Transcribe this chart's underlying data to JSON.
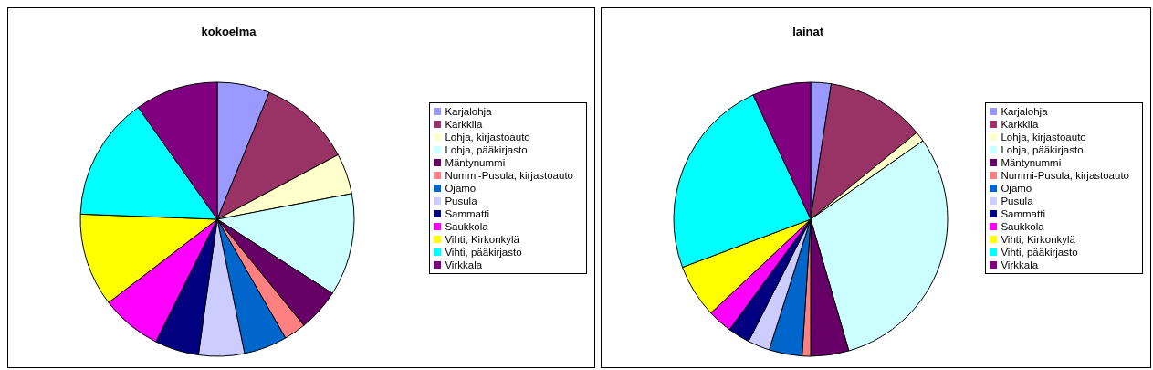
{
  "chart_data": [
    {
      "type": "pie",
      "title": "kokoelma",
      "categories": [
        "Karjalohja",
        "Karkkila",
        "Lohja, kirjastoauto",
        "Lohja, pääkirjasto",
        "Mäntynummi",
        "Nummi-Pusula, kirjastoauto",
        "Ojamo",
        "Pusula",
        "Sammatti",
        "Saukkola",
        "Vihti, Kirkonkylä",
        "Vihti, pääkirjasto",
        "Virkkala"
      ],
      "values": [
        6.2,
        11.0,
        4.8,
        12.1,
        5.0,
        2.6,
        5.1,
        5.4,
        5.2,
        7.2,
        11.0,
        14.6,
        9.8
      ],
      "colors": [
        "#9999ff",
        "#993366",
        "#ffffcc",
        "#ccffff",
        "#660066",
        "#ff8080",
        "#0066cc",
        "#ccccff",
        "#000080",
        "#ff00ff",
        "#ffff00",
        "#00ffff",
        "#800080"
      ],
      "legend": "right"
    },
    {
      "type": "pie",
      "title": "lainat",
      "categories": [
        "Karjalohja",
        "Karkkila",
        "Lohja, kirjastoauto",
        "Lohja, pääkirjasto",
        "Mäntynummi",
        "Nummi-Pusula, kirjastoauto",
        "Ojamo",
        "Pusula",
        "Sammatti",
        "Saukkola",
        "Vihti, Kirkonkylä",
        "Vihti, pääkirjasto",
        "Virkkala"
      ],
      "values": [
        2.4,
        11.7,
        1.2,
        30.2,
        4.5,
        1.0,
        3.9,
        2.6,
        2.6,
        2.9,
        6.3,
        23.8,
        6.9
      ],
      "colors": [
        "#9999ff",
        "#993366",
        "#ffffcc",
        "#ccffff",
        "#660066",
        "#ff8080",
        "#0066cc",
        "#ccccff",
        "#000080",
        "#ff00ff",
        "#ffff00",
        "#00ffff",
        "#800080"
      ],
      "legend": "right"
    }
  ]
}
